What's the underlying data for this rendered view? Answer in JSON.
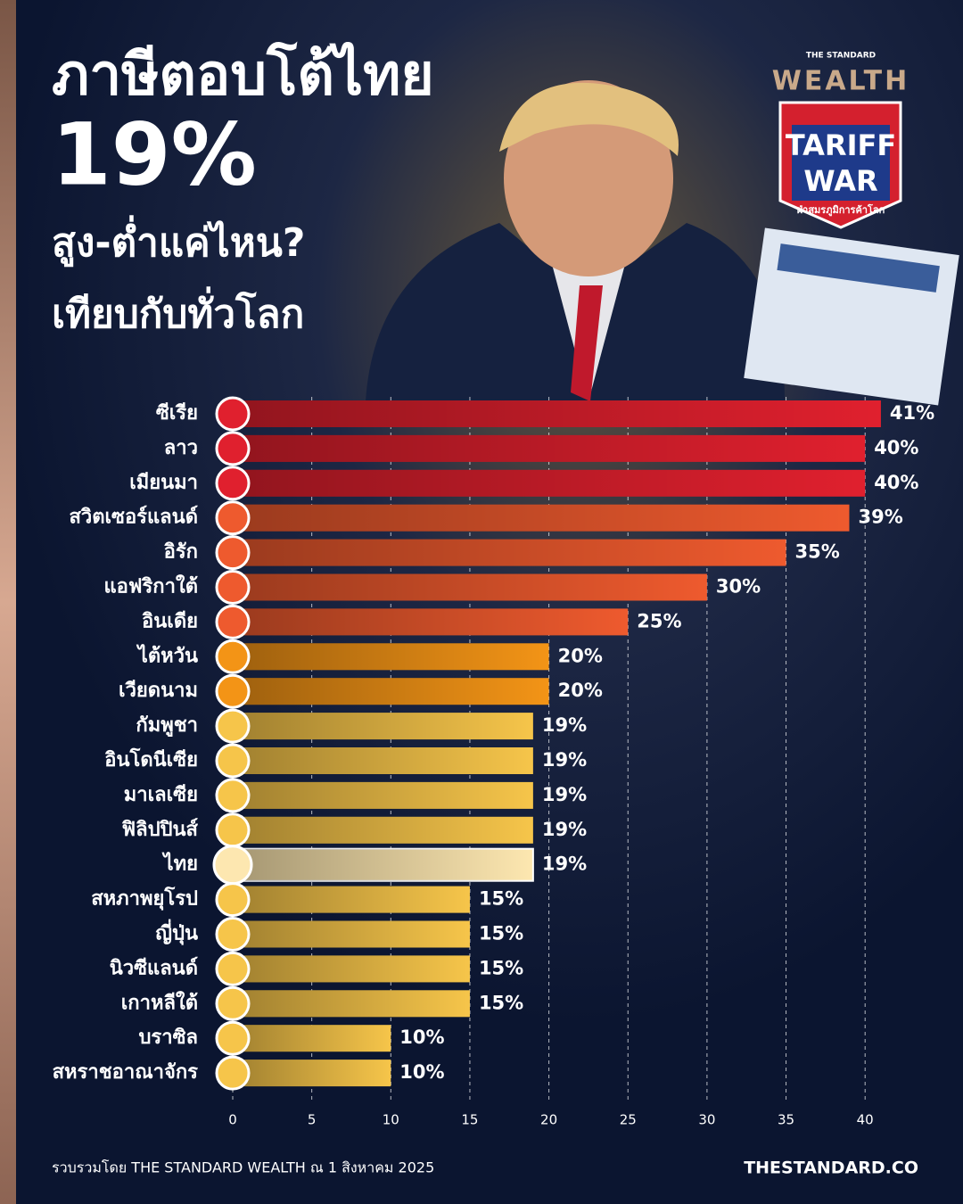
{
  "chart_data": {
    "type": "hbar",
    "title": "ภาษีตอบโต้ไทย",
    "headline": "19%",
    "subtitle": [
      "สูง-ต่ำแค่ไหน?",
      "เทียบกับทั่วโลก"
    ],
    "logo": {
      "brand_top": "THE STANDARD",
      "brand": "WEALTH",
      "badge": [
        "TARIFF",
        "WAR"
      ],
      "badge_caption": "ฝ่าสมรภูมิการค้าโลก"
    },
    "categories": [
      "ซีเรีย",
      "ลาว",
      "เมียนมา",
      "สวิตเซอร์แลนด์",
      "อิรัก",
      "แอฟริกาใต้",
      "อินเดีย",
      "ไต้หวัน",
      "เวียดนาม",
      "กัมพูชา",
      "อินโดนีเซีย",
      "มาเลเซีย",
      "ฟิลิปปินส์",
      "ไทย",
      "สหภาพยุโรป",
      "ญี่ปุ่น",
      "นิวซีแลนด์",
      "เกาหลีใต้",
      "บราซิล",
      "สหราชอาณาจักร"
    ],
    "values": [
      41,
      40,
      40,
      39,
      35,
      30,
      25,
      20,
      20,
      19,
      19,
      19,
      19,
      19,
      15,
      15,
      15,
      15,
      10,
      10
    ],
    "value_labels": [
      "41%",
      "40%",
      "40%",
      "39%",
      "35%",
      "30%",
      "25%",
      "20%",
      "20%",
      "19%",
      "19%",
      "19%",
      "19%",
      "19%",
      "15%",
      "15%",
      "15%",
      "15%",
      "10%",
      "10%"
    ],
    "colors": [
      "#e0202e",
      "#e0202e",
      "#e0202e",
      "#ee5a2e",
      "#ee5a2e",
      "#ee5a2e",
      "#ee5a2e",
      "#f39416",
      "#f39416",
      "#f6c54a",
      "#f6c54a",
      "#f6c54a",
      "#f6c54a",
      "#fde7b0",
      "#f6c54a",
      "#f6c54a",
      "#f6c54a",
      "#f6c54a",
      "#f6c54a",
      "#f6c54a"
    ],
    "highlight_index": 13,
    "highlight_color": "#f6c54a",
    "xlim": [
      0,
      42
    ],
    "xticks": [
      0,
      5,
      10,
      15,
      20,
      25,
      30,
      35,
      40
    ],
    "grid": true,
    "source": "รวบรวมโดย THE STANDARD WEALTH ณ 1 สิงหาคม 2025",
    "site": "THESTANDARD.CO"
  }
}
